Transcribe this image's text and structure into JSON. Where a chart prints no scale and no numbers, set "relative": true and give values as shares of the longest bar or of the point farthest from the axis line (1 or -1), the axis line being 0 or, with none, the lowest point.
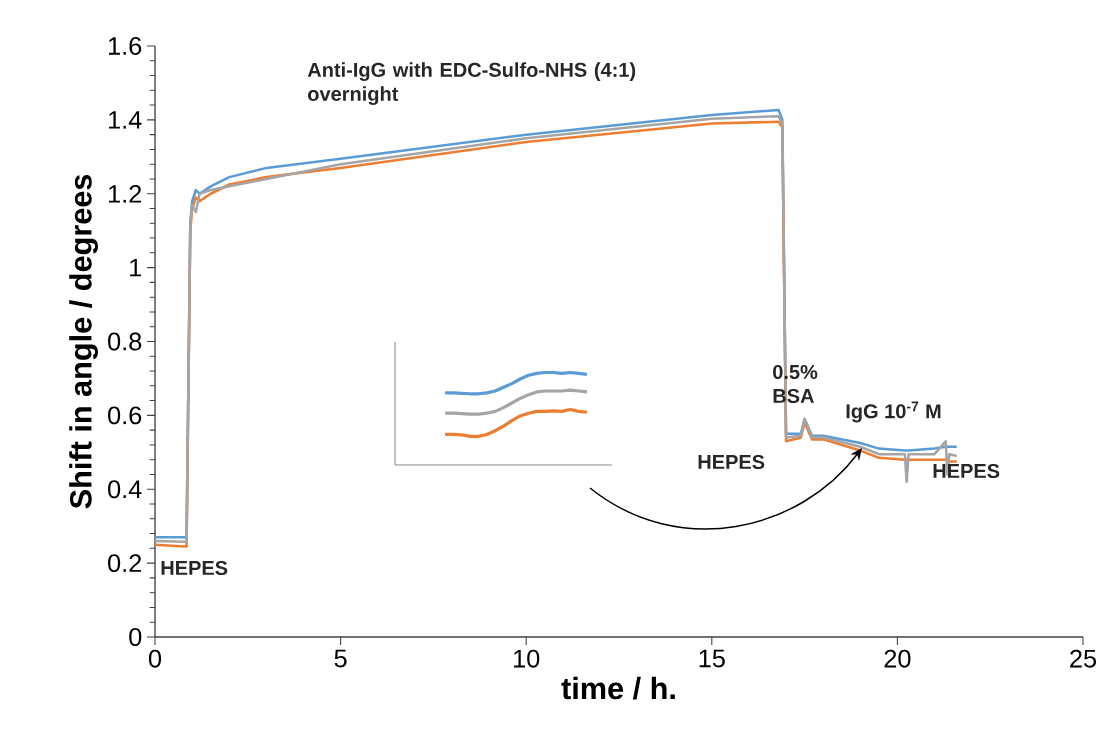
{
  "chart_data": [
    {
      "type": "line",
      "xlabel": "time / h.",
      "ylabel": "Shift in angle / degrees",
      "x": [
        0,
        0.8,
        0.85,
        0.95,
        1.0,
        1.1,
        1.2,
        1.5,
        2,
        3,
        5,
        10,
        15,
        16.8,
        16.9,
        17.0,
        17.4,
        17.5,
        17.7,
        18,
        19,
        19.5,
        20.2,
        20.25,
        20.3,
        21,
        21.3,
        21.35,
        21.4,
        21.6
      ],
      "series": [
        {
          "color": "#5b9bd5",
          "values": [
            0.27,
            0.27,
            0.27,
            1.12,
            1.18,
            1.21,
            1.2,
            1.22,
            1.245,
            1.27,
            1.295,
            1.36,
            1.413,
            1.427,
            1.4,
            0.55,
            0.55,
            0.59,
            0.545,
            0.545,
            0.525,
            0.51,
            0.505,
            0.505,
            0.505,
            0.51,
            0.515,
            0.515,
            0.515,
            0.515
          ]
        },
        {
          "color": "#ed7d31",
          "values": [
            0.25,
            0.245,
            0.245,
            1.1,
            1.16,
            1.19,
            1.18,
            1.2,
            1.225,
            1.245,
            1.27,
            1.34,
            1.39,
            1.395,
            1.38,
            0.53,
            0.54,
            0.58,
            0.535,
            0.535,
            0.505,
            0.485,
            0.48,
            0.48,
            0.48,
            0.48,
            0.48,
            0.48,
            0.475,
            0.475
          ]
        },
        {
          "color": "#a5a5a5",
          "values": [
            0.26,
            0.258,
            0.258,
            1.11,
            1.17,
            1.15,
            1.2,
            1.21,
            1.22,
            1.24,
            1.28,
            1.35,
            1.403,
            1.41,
            1.39,
            0.54,
            0.545,
            0.59,
            0.54,
            0.54,
            0.515,
            0.495,
            0.495,
            0.42,
            0.495,
            0.495,
            0.53,
            0.44,
            0.495,
            0.49
          ]
        }
      ],
      "xlim": [
        0,
        25
      ],
      "ylim": [
        0,
        1.6
      ],
      "xticks": [
        0,
        5,
        10,
        15,
        20,
        25
      ],
      "yticks": [
        0,
        0.2,
        0.4,
        0.6,
        0.8,
        1,
        1.2,
        1.4,
        1.6
      ],
      "annotations": [
        "Anti-IgG with EDC-Sulfo-NHS (4:1) overnight",
        "HEPES",
        "0.5% BSA",
        "IgG 10$^{-7}$ M",
        "HEPES",
        "HEPES"
      ]
    },
    {
      "type": "line",
      "relative": true,
      "categories": [
        null,
        null,
        null,
        null,
        null,
        null,
        null,
        null,
        null,
        null,
        null,
        null,
        null,
        null,
        null,
        null,
        null,
        null,
        null,
        null,
        null,
        null,
        null,
        null,
        null,
        null,
        null
      ],
      "series": [
        {
          "color": "#5b9bd5",
          "values": [
            null,
            null,
            null,
            null,
            null,
            null,
            0.78,
            0.78,
            0.775,
            0.77,
            0.77,
            0.78,
            0.8,
            0.84,
            0.88,
            0.93,
            0.97,
            0.99,
            1.0,
            1.0,
            0.99,
            1.0,
            0.99,
            0.98,
            null,
            null,
            null
          ]
        },
        {
          "color": "#a5a5a5",
          "values": [
            null,
            null,
            null,
            null,
            null,
            null,
            0.56,
            0.56,
            0.555,
            0.55,
            0.55,
            0.56,
            0.58,
            0.62,
            0.67,
            0.72,
            0.76,
            0.79,
            0.8,
            0.8,
            0.8,
            0.81,
            0.8,
            0.79,
            null,
            null,
            null
          ]
        },
        {
          "color": "#ed7d31",
          "values": [
            null,
            null,
            null,
            null,
            null,
            null,
            0.33,
            0.33,
            0.325,
            0.31,
            0.31,
            0.33,
            0.37,
            0.42,
            0.48,
            0.53,
            0.56,
            0.58,
            0.58,
            0.585,
            0.58,
            0.6,
            0.58,
            0.57,
            null,
            null,
            null
          ]
        }
      ]
    }
  ]
}
